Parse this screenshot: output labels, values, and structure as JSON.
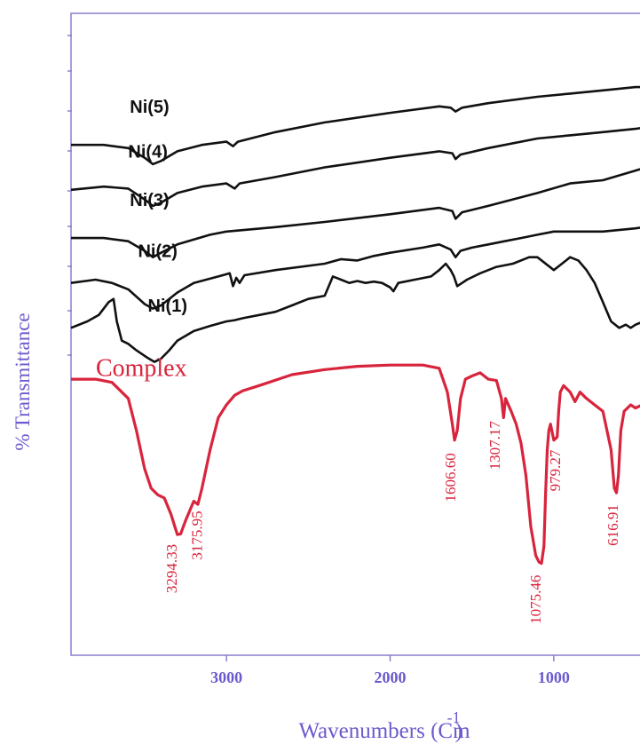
{
  "chart_data": {
    "type": "line",
    "title": "",
    "xlabel": "Wavenumbers (Cm",
    "xlabel_superscript": "-1",
    "xlabel_close": ")",
    "ylabel": "% Transmittance",
    "x_reversed": true,
    "xlim": [
      3950,
      370
    ],
    "ylim": [
      0,
      100
    ],
    "x_ticks": [
      {
        "value": 3000,
        "label": "3000"
      },
      {
        "value": 2000,
        "label": "2000"
      },
      {
        "value": 1000,
        "label": "1000"
      }
    ],
    "grid": false,
    "series": [
      {
        "name": "Ni(5)",
        "color": "#111111",
        "points": [
          [
            3950,
            79.5
          ],
          [
            3750,
            79.5
          ],
          [
            3600,
            79
          ],
          [
            3500,
            77.5
          ],
          [
            3450,
            76.5
          ],
          [
            3400,
            77
          ],
          [
            3300,
            78.5
          ],
          [
            3150,
            79.5
          ],
          [
            3000,
            80
          ],
          [
            2960,
            79.3
          ],
          [
            2930,
            80
          ],
          [
            2700,
            81.5
          ],
          [
            2400,
            83
          ],
          [
            2000,
            84.5
          ],
          [
            1700,
            85.5
          ],
          [
            1630,
            85.3
          ],
          [
            1600,
            84.7
          ],
          [
            1560,
            85.3
          ],
          [
            1400,
            86
          ],
          [
            1100,
            87
          ],
          [
            900,
            87.5
          ],
          [
            700,
            88
          ],
          [
            500,
            88.5
          ],
          [
            370,
            88.5
          ]
        ]
      },
      {
        "name": "Ni(4)",
        "color": "#111111",
        "points": [
          [
            3950,
            72.5
          ],
          [
            3750,
            73
          ],
          [
            3600,
            72.7
          ],
          [
            3500,
            71
          ],
          [
            3450,
            70
          ],
          [
            3400,
            70.5
          ],
          [
            3300,
            72
          ],
          [
            3150,
            73
          ],
          [
            3000,
            73.5
          ],
          [
            2950,
            72.7
          ],
          [
            2920,
            73.5
          ],
          [
            2700,
            74.5
          ],
          [
            2400,
            76
          ],
          [
            2000,
            77.5
          ],
          [
            1700,
            78.5
          ],
          [
            1620,
            78.2
          ],
          [
            1600,
            77.3
          ],
          [
            1570,
            78
          ],
          [
            1400,
            79
          ],
          [
            1100,
            80.5
          ],
          [
            900,
            81
          ],
          [
            700,
            81.5
          ],
          [
            500,
            82
          ],
          [
            370,
            82.5
          ]
        ]
      },
      {
        "name": "Ni(3)",
        "color": "#111111",
        "points": [
          [
            3950,
            65
          ],
          [
            3750,
            65
          ],
          [
            3600,
            64.5
          ],
          [
            3500,
            63
          ],
          [
            3450,
            62
          ],
          [
            3400,
            62.7
          ],
          [
            3300,
            64
          ],
          [
            3100,
            65.5
          ],
          [
            3000,
            66
          ],
          [
            2700,
            66.7
          ],
          [
            2400,
            67.5
          ],
          [
            2000,
            68.7
          ],
          [
            1700,
            69.7
          ],
          [
            1620,
            69.2
          ],
          [
            1600,
            68
          ],
          [
            1560,
            69
          ],
          [
            1400,
            70
          ],
          [
            1100,
            72
          ],
          [
            900,
            73.5
          ],
          [
            700,
            74
          ],
          [
            500,
            75.5
          ],
          [
            370,
            76.5
          ]
        ]
      },
      {
        "name": "Ni(2)",
        "color": "#111111",
        "points": [
          [
            3950,
            58
          ],
          [
            3800,
            58.5
          ],
          [
            3700,
            58
          ],
          [
            3600,
            57
          ],
          [
            3500,
            54.7
          ],
          [
            3450,
            54
          ],
          [
            3400,
            54.5
          ],
          [
            3300,
            56.5
          ],
          [
            3200,
            58
          ],
          [
            3050,
            59
          ],
          [
            2980,
            59.5
          ],
          [
            2960,
            57.5
          ],
          [
            2940,
            58.8
          ],
          [
            2920,
            58
          ],
          [
            2890,
            59.2
          ],
          [
            2700,
            60
          ],
          [
            2400,
            61
          ],
          [
            2300,
            61.7
          ],
          [
            2200,
            61.5
          ],
          [
            2100,
            62.2
          ],
          [
            2000,
            62.7
          ],
          [
            1800,
            63.5
          ],
          [
            1700,
            64
          ],
          [
            1630,
            63.2
          ],
          [
            1600,
            62
          ],
          [
            1570,
            63
          ],
          [
            1500,
            63.5
          ],
          [
            1400,
            64
          ],
          [
            1300,
            64.5
          ],
          [
            1200,
            65
          ],
          [
            1100,
            65.5
          ],
          [
            1000,
            66
          ],
          [
            900,
            66
          ],
          [
            800,
            66
          ],
          [
            700,
            66
          ],
          [
            500,
            66.5
          ],
          [
            370,
            67
          ]
        ]
      },
      {
        "name": "Ni(1)",
        "color": "#111111",
        "points": [
          [
            3950,
            51
          ],
          [
            3850,
            52
          ],
          [
            3780,
            53
          ],
          [
            3720,
            55
          ],
          [
            3690,
            55.5
          ],
          [
            3670,
            52
          ],
          [
            3640,
            49
          ],
          [
            3600,
            48.5
          ],
          [
            3550,
            47.5
          ],
          [
            3480,
            46.3
          ],
          [
            3440,
            45.7
          ],
          [
            3400,
            46.2
          ],
          [
            3350,
            47.5
          ],
          [
            3300,
            49
          ],
          [
            3200,
            50.5
          ],
          [
            3100,
            51.3
          ],
          [
            3000,
            52
          ],
          [
            2950,
            52.2
          ],
          [
            2900,
            52.5
          ],
          [
            2800,
            53
          ],
          [
            2700,
            53.5
          ],
          [
            2600,
            54.5
          ],
          [
            2500,
            55.5
          ],
          [
            2400,
            56
          ],
          [
            2350,
            59
          ],
          [
            2300,
            58.5
          ],
          [
            2250,
            58
          ],
          [
            2200,
            58.3
          ],
          [
            2150,
            58
          ],
          [
            2100,
            58.2
          ],
          [
            2050,
            58
          ],
          [
            2000,
            57.3
          ],
          [
            1980,
            56.7
          ],
          [
            1950,
            58
          ],
          [
            1850,
            58.5
          ],
          [
            1750,
            59
          ],
          [
            1700,
            60
          ],
          [
            1660,
            61
          ],
          [
            1630,
            60
          ],
          [
            1610,
            59
          ],
          [
            1590,
            57.5
          ],
          [
            1560,
            58
          ],
          [
            1530,
            58.5
          ],
          [
            1450,
            59.5
          ],
          [
            1350,
            60.5
          ],
          [
            1250,
            61
          ],
          [
            1150,
            62
          ],
          [
            1100,
            62
          ],
          [
            1000,
            60
          ],
          [
            950,
            61
          ],
          [
            900,
            62
          ],
          [
            850,
            61.5
          ],
          [
            800,
            60
          ],
          [
            750,
            58
          ],
          [
            700,
            55
          ],
          [
            650,
            52
          ],
          [
            600,
            51
          ],
          [
            560,
            51.5
          ],
          [
            530,
            51
          ],
          [
            500,
            51.5
          ],
          [
            450,
            52
          ],
          [
            400,
            52.5
          ],
          [
            370,
            52.5
          ]
        ]
      },
      {
        "name": "Complex",
        "color": "#d8243c",
        "points": [
          [
            3950,
            43
          ],
          [
            3800,
            43
          ],
          [
            3700,
            42.5
          ],
          [
            3600,
            40
          ],
          [
            3550,
            35
          ],
          [
            3500,
            29
          ],
          [
            3460,
            26
          ],
          [
            3420,
            25
          ],
          [
            3380,
            24.5
          ],
          [
            3340,
            22
          ],
          [
            3300,
            18.8
          ],
          [
            3280,
            18.9
          ],
          [
            3250,
            21
          ],
          [
            3200,
            24
          ],
          [
            3175,
            23.5
          ],
          [
            3150,
            26
          ],
          [
            3100,
            32
          ],
          [
            3050,
            37
          ],
          [
            3000,
            39
          ],
          [
            2950,
            40.5
          ],
          [
            2900,
            41.2
          ],
          [
            2800,
            42
          ],
          [
            2600,
            43.7
          ],
          [
            2400,
            44.5
          ],
          [
            2200,
            45
          ],
          [
            2000,
            45.2
          ],
          [
            1800,
            45.2
          ],
          [
            1700,
            44.7
          ],
          [
            1650,
            41
          ],
          [
            1620,
            36
          ],
          [
            1606,
            33.5
          ],
          [
            1590,
            35
          ],
          [
            1570,
            40
          ],
          [
            1540,
            43
          ],
          [
            1500,
            43.5
          ],
          [
            1450,
            44
          ],
          [
            1400,
            43
          ],
          [
            1350,
            42.8
          ],
          [
            1320,
            40
          ],
          [
            1307,
            37
          ],
          [
            1295,
            40
          ],
          [
            1260,
            38
          ],
          [
            1230,
            36
          ],
          [
            1200,
            33
          ],
          [
            1170,
            28
          ],
          [
            1140,
            20
          ],
          [
            1110,
            15.5
          ],
          [
            1090,
            14.5
          ],
          [
            1075,
            14.3
          ],
          [
            1060,
            17
          ],
          [
            1050,
            25
          ],
          [
            1040,
            32
          ],
          [
            1030,
            35
          ],
          [
            1020,
            36
          ],
          [
            1000,
            33.5
          ],
          [
            979,
            34
          ],
          [
            970,
            38
          ],
          [
            960,
            41
          ],
          [
            940,
            42
          ],
          [
            900,
            41
          ],
          [
            870,
            39.5
          ],
          [
            840,
            41
          ],
          [
            800,
            40
          ],
          [
            750,
            39
          ],
          [
            700,
            38
          ],
          [
            650,
            32
          ],
          [
            630,
            26
          ],
          [
            617,
            25.3
          ],
          [
            605,
            28
          ],
          [
            590,
            35
          ],
          [
            570,
            38
          ],
          [
            530,
            39
          ],
          [
            500,
            38.5
          ],
          [
            460,
            39
          ],
          [
            430,
            40
          ],
          [
            400,
            40
          ],
          [
            370,
            40
          ]
        ]
      }
    ],
    "peak_annotations": [
      {
        "value": 3294.33,
        "label": "3294.33"
      },
      {
        "value": 3175.95,
        "label": "3175.95"
      },
      {
        "value": 1606.6,
        "label": "1606.60"
      },
      {
        "value": 1307.17,
        "label": "1307.17"
      },
      {
        "value": 1075.46,
        "label": "1075.46"
      },
      {
        "value": 979.27,
        "label": "979.27"
      },
      {
        "value": 616.91,
        "label": "616.91"
      }
    ],
    "colors": {
      "frame": "#8a7fd0",
      "axis_text": "#6a5acd",
      "complex": "#d8243c",
      "ni": "#111111"
    }
  }
}
